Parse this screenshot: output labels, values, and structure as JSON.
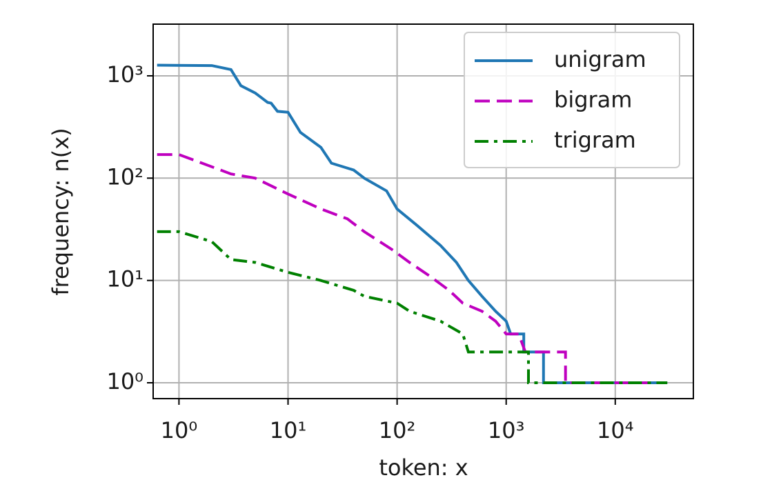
{
  "chart_data": {
    "type": "line",
    "xlabel": "token: x",
    "ylabel": "frequency: n(x)",
    "xscale": "log",
    "yscale": "log",
    "grid": true,
    "legend": "upper right",
    "xlim": [
      0.58,
      52000
    ],
    "ylim": [
      0.7,
      3200
    ],
    "xticks": [
      {
        "value": 1,
        "label": "10⁰"
      },
      {
        "value": 10,
        "label": "10¹"
      },
      {
        "value": 100,
        "label": "10²"
      },
      {
        "value": 1000,
        "label": "10³"
      },
      {
        "value": 10000,
        "label": "10⁴"
      }
    ],
    "yticks": [
      {
        "value": 1,
        "label": "10⁰"
      },
      {
        "value": 10,
        "label": "10¹"
      },
      {
        "value": 100,
        "label": "10²"
      },
      {
        "value": 1000,
        "label": "10³"
      }
    ],
    "series": [
      {
        "name": "unigram",
        "color": "#1f77b4",
        "dash": "solid",
        "x": [
          0.63,
          2,
          3,
          3.7,
          5,
          6.5,
          7,
          8,
          10,
          13,
          20,
          25,
          40,
          50,
          80,
          100,
          150,
          250,
          350,
          450,
          600,
          800,
          1000,
          1100,
          1450,
          1450,
          2200,
          2200,
          30000
        ],
        "values": [
          1270,
          1260,
          1150,
          800,
          680,
          550,
          540,
          450,
          440,
          280,
          200,
          140,
          120,
          100,
          75,
          50,
          35,
          22,
          15,
          10,
          7,
          5,
          4,
          3,
          3,
          2,
          2,
          1,
          1
        ]
      },
      {
        "name": "bigram",
        "color": "#bf00bf",
        "dash": "dashed",
        "x": [
          0.63,
          1,
          3,
          5,
          10,
          20,
          35,
          50,
          90,
          130,
          200,
          300,
          400,
          600,
          800,
          1000,
          1300,
          1500,
          3500,
          3500,
          20000
        ],
        "values": [
          170,
          170,
          110,
          100,
          70,
          50,
          40,
          30,
          20,
          15,
          11,
          8,
          6,
          5,
          4,
          3,
          3,
          2,
          2,
          1,
          1
        ]
      },
      {
        "name": "trigram",
        "color": "#008000",
        "dash": "dashdot",
        "x": [
          0.63,
          1,
          2,
          3,
          5,
          10,
          20,
          40,
          50,
          100,
          130,
          250,
          400,
          450,
          1600,
          1600,
          30000
        ],
        "values": [
          30,
          30,
          24,
          16,
          15,
          12,
          10,
          8,
          7,
          6,
          5,
          4,
          3,
          2,
          2,
          1,
          1
        ]
      }
    ]
  }
}
